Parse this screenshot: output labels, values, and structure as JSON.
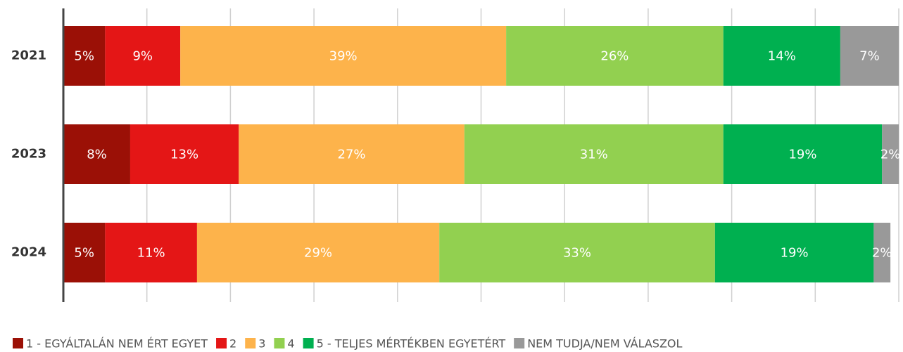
{
  "chart_data": {
    "type": "stacked_bar_horizontal",
    "categories": [
      "2021",
      "2023",
      "2024"
    ],
    "series": [
      {
        "name": "1 - EGYÁLTALÁN NEM ÉRT EGYET",
        "color": "#9b1006",
        "values": [
          5,
          8,
          5
        ],
        "value_labels": [
          "5%",
          "8%",
          "5%"
        ]
      },
      {
        "name": "2",
        "color": "#e41616",
        "values": [
          9,
          13,
          11
        ],
        "value_labels": [
          "9%",
          "13%",
          "11%"
        ]
      },
      {
        "name": "3",
        "color": "#fdb34b",
        "values": [
          39,
          27,
          29
        ],
        "value_labels": [
          "39%",
          "27%",
          "29%"
        ]
      },
      {
        "name": "4",
        "color": "#92d050",
        "values": [
          26,
          31,
          33
        ],
        "value_labels": [
          "26%",
          "31%",
          "33%"
        ]
      },
      {
        "name": "5 - TELJES MÉRTÉKBEN EGYETÉRT",
        "color": "#00b050",
        "values": [
          14,
          19,
          19
        ],
        "value_labels": [
          "14%",
          "19%",
          "19%"
        ]
      },
      {
        "name": "NEM TUDJA/NEM VÁLASZOL",
        "color": "#999999",
        "values": [
          7,
          2,
          2
        ],
        "value_labels": [
          "7%",
          "2%",
          "2%"
        ]
      }
    ],
    "xlim": [
      0,
      100
    ],
    "xticks": [
      0,
      10,
      20,
      30,
      40,
      50,
      60,
      70,
      80,
      90,
      100
    ],
    "grid": true,
    "legend": "bottom"
  }
}
